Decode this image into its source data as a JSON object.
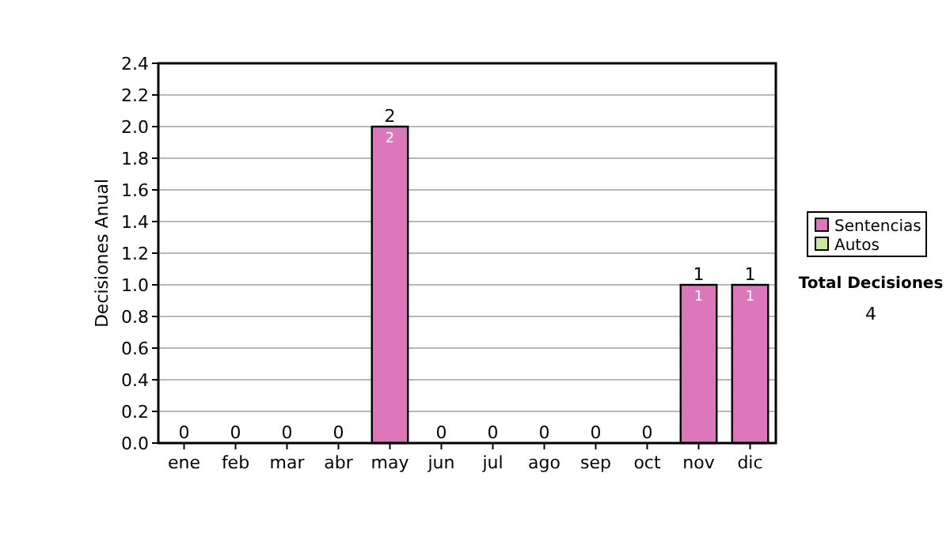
{
  "chart_data": {
    "type": "bar",
    "stacked": true,
    "ylabel": "Decisiones Anual",
    "categories": [
      "ene",
      "feb",
      "mar",
      "abr",
      "may",
      "jun",
      "jul",
      "ago",
      "sep",
      "oct",
      "nov",
      "dic"
    ],
    "series": [
      {
        "name": "Sentencias",
        "color": "#dd77bb",
        "values": [
          0,
          0,
          0,
          0,
          2,
          0,
          0,
          0,
          0,
          0,
          1,
          1
        ],
        "value_labels": [
          null,
          null,
          null,
          null,
          "2",
          null,
          null,
          null,
          null,
          null,
          "1",
          "1"
        ]
      },
      {
        "name": "Autos",
        "color": "#cce8a0",
        "values": [
          0,
          0,
          0,
          0,
          0,
          0,
          0,
          0,
          0,
          0,
          0,
          0
        ]
      }
    ],
    "totals": [
      "0",
      "0",
      "0",
      "0",
      "2",
      "0",
      "0",
      "0",
      "0",
      "0",
      "1",
      "1"
    ],
    "ylim": [
      0,
      2.4
    ],
    "yticks": [
      {
        "value": 0,
        "label": "0.0"
      },
      {
        "value": 0.2,
        "label": "0.2"
      },
      {
        "value": 0.4,
        "label": "0.4"
      },
      {
        "value": 0.6,
        "label": "0.6"
      },
      {
        "value": 0.8,
        "label": "0.8"
      },
      {
        "value": 1,
        "label": "1.0"
      },
      {
        "value": 1.2,
        "label": "1.2"
      },
      {
        "value": 1.4,
        "label": "1.4"
      },
      {
        "value": 1.6,
        "label": "1.6"
      },
      {
        "value": 1.8,
        "label": "1.8"
      },
      {
        "value": 2,
        "label": "2.0"
      },
      {
        "value": 2.2,
        "label": "2.2"
      },
      {
        "value": 2.4,
        "label": "2.4"
      }
    ],
    "grid": "y",
    "legend": "right",
    "annotations": [
      "Total Decisiones",
      "4"
    ]
  }
}
